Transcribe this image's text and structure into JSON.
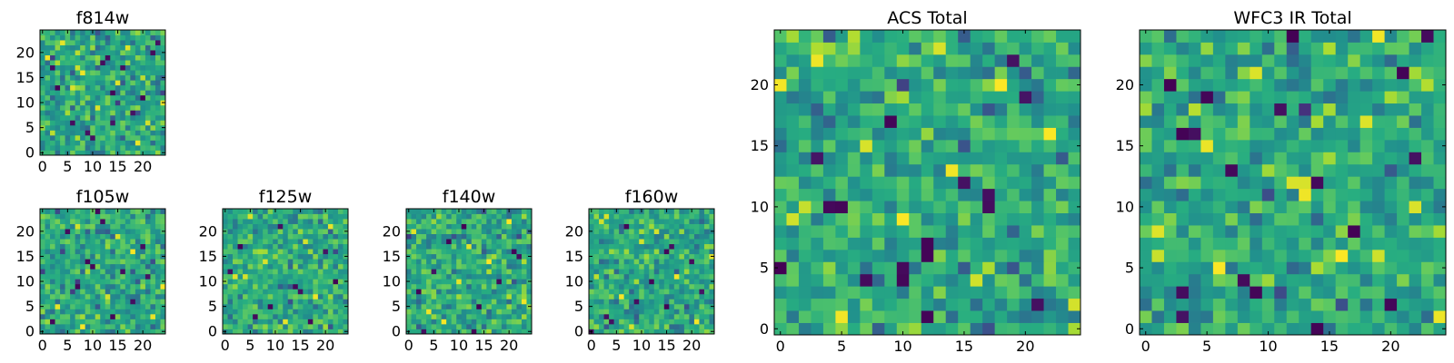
{
  "chart_data": [
    {
      "type": "heatmap",
      "title": "f814w",
      "grid": [
        25,
        25
      ],
      "colormap": "viridis",
      "xlim": [
        0,
        24
      ],
      "ylim": [
        0,
        24
      ],
      "xticks": [
        0,
        5,
        10,
        15,
        20
      ],
      "yticks": [
        0,
        5,
        10,
        15,
        20
      ],
      "grid_lines": false,
      "low_cells": [
        [
          14,
          12
        ],
        [
          14,
          6
        ],
        [
          6,
          6
        ],
        [
          12,
          18
        ],
        [
          13,
          19
        ],
        [
          22,
          20
        ],
        [
          23,
          22
        ],
        [
          9,
          4
        ],
        [
          16,
          17
        ],
        [
          18,
          8
        ],
        [
          20,
          11
        ],
        [
          3,
          13
        ],
        [
          2,
          17
        ],
        [
          10,
          3
        ]
      ],
      "high_cells": [
        [
          4,
          22
        ],
        [
          8,
          16
        ],
        [
          15,
          14
        ],
        [
          19,
          2
        ],
        [
          11,
          9
        ],
        [
          21,
          6
        ],
        [
          1,
          19
        ],
        [
          17,
          21
        ],
        [
          6,
          13
        ],
        [
          24,
          10
        ]
      ]
    },
    {
      "type": "heatmap",
      "title": "f105w",
      "grid": [
        25,
        25
      ],
      "colormap": "viridis",
      "xlim": [
        0,
        24
      ],
      "ylim": [
        0,
        24
      ],
      "xticks": [
        0,
        5,
        10,
        15,
        20
      ],
      "yticks": [
        0,
        5,
        10,
        15,
        20
      ],
      "grid_lines": false,
      "low_cells": [
        [
          5,
          20
        ],
        [
          12,
          22
        ],
        [
          9,
          14
        ],
        [
          10,
          13
        ],
        [
          16,
          12
        ],
        [
          18,
          6
        ],
        [
          14,
          3
        ],
        [
          7,
          9
        ],
        [
          20,
          17
        ],
        [
          2,
          2
        ],
        [
          21,
          11
        ],
        [
          11,
          24
        ]
      ],
      "high_cells": [
        [
          3,
          5
        ],
        [
          13,
          7
        ],
        [
          18,
          16
        ],
        [
          7,
          21
        ],
        [
          22,
          3
        ],
        [
          15,
          19
        ],
        [
          24,
          9
        ],
        [
          8,
          1
        ]
      ]
    },
    {
      "type": "heatmap",
      "title": "f125w",
      "grid": [
        25,
        25
      ],
      "colormap": "viridis",
      "xlim": [
        0,
        24
      ],
      "ylim": [
        0,
        24
      ],
      "xticks": [
        0,
        5,
        10,
        15,
        20
      ],
      "yticks": [
        0,
        5,
        10,
        15,
        20
      ],
      "grid_lines": false,
      "low_cells": [
        [
          9,
          5
        ],
        [
          14,
          9
        ],
        [
          15,
          8
        ],
        [
          3,
          17
        ],
        [
          20,
          16
        ],
        [
          11,
          21
        ],
        [
          6,
          3
        ],
        [
          22,
          10
        ],
        [
          17,
          2
        ],
        [
          1,
          12
        ]
      ],
      "high_cells": [
        [
          2,
          11
        ],
        [
          4,
          11
        ],
        [
          8,
          14
        ],
        [
          18,
          7
        ],
        [
          12,
          2
        ],
        [
          21,
          21
        ],
        [
          5,
          23
        ],
        [
          16,
          18
        ]
      ]
    },
    {
      "type": "heatmap",
      "title": "f140w",
      "grid": [
        25,
        25
      ],
      "colormap": "viridis",
      "xlim": [
        0,
        24
      ],
      "ylim": [
        0,
        24
      ],
      "xticks": [
        0,
        5,
        10,
        15,
        20
      ],
      "yticks": [
        0,
        5,
        10,
        15,
        20
      ],
      "grid_lines": false,
      "low_cells": [
        [
          21,
          16
        ],
        [
          22,
          15
        ],
        [
          8,
          18
        ],
        [
          14,
          5
        ],
        [
          13,
          0
        ],
        [
          3,
          0
        ],
        [
          18,
          10
        ],
        [
          5,
          12
        ],
        [
          11,
          21
        ],
        [
          2,
          8
        ]
      ],
      "high_cells": [
        [
          10,
          10
        ],
        [
          16,
          14
        ],
        [
          4,
          4
        ],
        [
          20,
          22
        ],
        [
          7,
          2
        ],
        [
          23,
          6
        ],
        [
          12,
          17
        ],
        [
          1,
          20
        ]
      ]
    },
    {
      "type": "heatmap",
      "title": "f160w",
      "grid": [
        25,
        25
      ],
      "colormap": "viridis",
      "xlim": [
        0,
        24
      ],
      "ylim": [
        0,
        24
      ],
      "xticks": [
        0,
        5,
        10,
        15,
        20
      ],
      "yticks": [
        0,
        5,
        10,
        15,
        20
      ],
      "grid_lines": false,
      "low_cells": [
        [
          15,
          16
        ],
        [
          16,
          17
        ],
        [
          9,
          6
        ],
        [
          3,
          3
        ],
        [
          4,
          2
        ],
        [
          15,
          5
        ],
        [
          20,
          14
        ],
        [
          12,
          10
        ],
        [
          0,
          0
        ],
        [
          7,
          21
        ],
        [
          22,
          8
        ]
      ],
      "high_cells": [
        [
          2,
          22
        ],
        [
          3,
          23
        ],
        [
          10,
          18
        ],
        [
          17,
          11
        ],
        [
          6,
          7
        ],
        [
          21,
          2
        ],
        [
          13,
          20
        ],
        [
          24,
          15
        ]
      ]
    },
    {
      "type": "heatmap",
      "title": "ACS Total",
      "grid": [
        25,
        25
      ],
      "colormap": "viridis",
      "xlim": [
        0,
        24
      ],
      "ylim": [
        0,
        24
      ],
      "xticks": [
        0,
        5,
        10,
        15,
        20
      ],
      "yticks": [
        0,
        5,
        10,
        15,
        20
      ],
      "grid_lines": false,
      "low_cells": [
        [
          17,
          10
        ],
        [
          17,
          11
        ],
        [
          12,
          6
        ],
        [
          12,
          7
        ],
        [
          4,
          10
        ],
        [
          5,
          10
        ],
        [
          20,
          19
        ],
        [
          7,
          4
        ],
        [
          0,
          5
        ],
        [
          10,
          5
        ],
        [
          10,
          4
        ],
        [
          12,
          1
        ],
        [
          15,
          12
        ],
        [
          21,
          2
        ],
        [
          3,
          14
        ],
        [
          9,
          17
        ],
        [
          19,
          22
        ]
      ],
      "high_cells": [
        [
          0,
          20
        ],
        [
          3,
          22
        ],
        [
          7,
          15
        ],
        [
          10,
          9
        ],
        [
          14,
          13
        ],
        [
          18,
          20
        ],
        [
          22,
          16
        ],
        [
          24,
          2
        ],
        [
          5,
          1
        ],
        [
          16,
          4
        ],
        [
          1,
          9
        ],
        [
          13,
          23
        ]
      ]
    },
    {
      "type": "heatmap",
      "title": "WFC3 IR Total",
      "grid": [
        25,
        25
      ],
      "colormap": "viridis",
      "xlim": [
        0,
        24
      ],
      "ylim": [
        0,
        24
      ],
      "xticks": [
        0,
        5,
        10,
        15,
        20
      ],
      "yticks": [
        0,
        5,
        10,
        15,
        20
      ],
      "grid_lines": false,
      "low_cells": [
        [
          2,
          20
        ],
        [
          5,
          19
        ],
        [
          3,
          16
        ],
        [
          4,
          16
        ],
        [
          7,
          13
        ],
        [
          14,
          12
        ],
        [
          8,
          4
        ],
        [
          9,
          3
        ],
        [
          3,
          1
        ],
        [
          3,
          3
        ],
        [
          14,
          0
        ],
        [
          20,
          2
        ],
        [
          21,
          21
        ],
        [
          22,
          14
        ],
        [
          11,
          18
        ],
        [
          17,
          8
        ],
        [
          23,
          24
        ],
        [
          12,
          24
        ]
      ],
      "high_cells": [
        [
          12,
          12
        ],
        [
          13,
          12
        ],
        [
          13,
          11
        ],
        [
          5,
          15
        ],
        [
          9,
          21
        ],
        [
          18,
          17
        ],
        [
          1,
          8
        ],
        [
          16,
          6
        ],
        [
          22,
          10
        ],
        [
          6,
          5
        ],
        [
          19,
          24
        ],
        [
          24,
          1
        ]
      ]
    }
  ]
}
